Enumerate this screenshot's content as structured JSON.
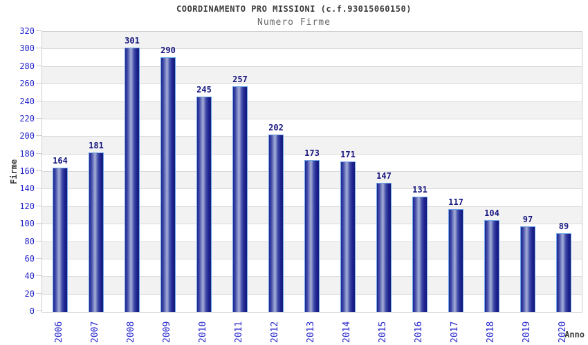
{
  "header": {
    "title": "COORDINAMENTO PRO MISSIONI (c.f.93015060150)",
    "subtitle": "Numero Firme"
  },
  "chart_data": {
    "type": "bar",
    "title": "COORDINAMENTO PRO MISSIONI (c.f.93015060150)",
    "subtitle": "Numero Firme",
    "categories": [
      "2006",
      "2007",
      "2008",
      "2009",
      "2010",
      "2011",
      "2012",
      "2013",
      "2014",
      "2015",
      "2016",
      "2017",
      "2018",
      "2019",
      "2020"
    ],
    "values": [
      164,
      181,
      301,
      290,
      245,
      257,
      202,
      173,
      171,
      147,
      131,
      117,
      104,
      97,
      89
    ],
    "xlabel": "Anno",
    "ylabel": "Firme",
    "ylim": [
      0,
      320
    ],
    "ytick_step": 20,
    "legend": "none",
    "grid": "horizontal-bands",
    "colors": {
      "bar_dark": "#1f2590",
      "bar_mid": "#3f4ba8",
      "bar_light": "#a9b0d8",
      "bar_edge_dark": "#14197a",
      "bar_border": "#6ea6e8",
      "tick_label": "#2323cc",
      "value_label": "#151580",
      "band_gray": "#f2f2f2",
      "band_white": "#ffffff",
      "grid_line": "#d9d9d9",
      "plot_border": "#cccccc",
      "title_color": "#3b3b3b",
      "subtitle_color": "#6b6b6b"
    }
  }
}
